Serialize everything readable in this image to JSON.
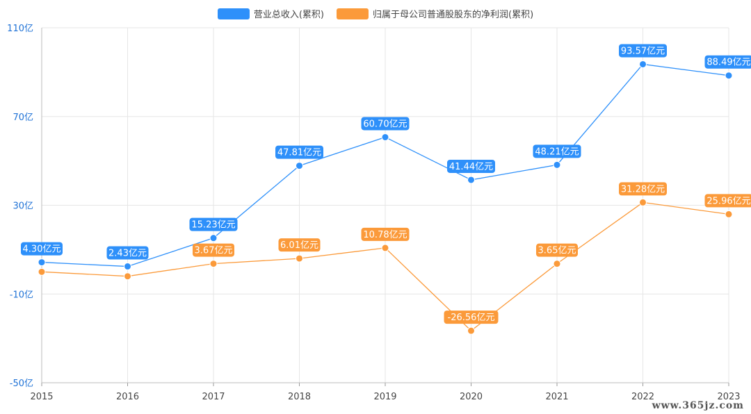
{
  "colors": {
    "revenue": "#2e90fa",
    "profit": "#fb9a3a",
    "grid": "#e6e6e6",
    "axis": "#1f72d6",
    "xaxis_text": "#444444"
  },
  "watermark": "www.365jz.com",
  "chart_data": {
    "type": "line",
    "categories": [
      "2015",
      "2016",
      "2017",
      "2018",
      "2019",
      "2020",
      "2021",
      "2022",
      "2023"
    ],
    "ylim": [
      -50,
      110
    ],
    "yticks": [
      -50,
      -10,
      30,
      70,
      110
    ],
    "ytick_labels": [
      "-50亿",
      "-10亿",
      "30亿",
      "70亿",
      "110亿"
    ],
    "grid": true,
    "legend_position": "top-center",
    "series": [
      {
        "name": "营业总收入(累积)",
        "color_key": "revenue",
        "values": [
          4.3,
          2.43,
          15.23,
          47.81,
          60.7,
          41.44,
          48.21,
          93.57,
          88.49
        ],
        "labels": [
          "4.30亿元",
          "2.43亿元",
          "15.23亿元",
          "47.81亿元",
          "60.70亿元",
          "41.44亿元",
          "48.21亿元",
          "93.57亿元",
          "88.49亿元"
        ],
        "label_mask": [
          1,
          1,
          1,
          1,
          1,
          1,
          1,
          1,
          1
        ]
      },
      {
        "name": "归属于母公司普通股股东的净利润(累积)",
        "color_key": "profit",
        "values": [
          0.0,
          -2.0,
          3.67,
          6.01,
          10.78,
          -26.56,
          3.65,
          31.28,
          25.96
        ],
        "labels": [
          "",
          "",
          "3.67亿元",
          "6.01亿元",
          "10.78亿元",
          "-26.56亿元",
          "3.65亿元",
          "31.28亿元",
          "25.96亿元"
        ],
        "label_mask": [
          0,
          0,
          1,
          1,
          1,
          1,
          1,
          1,
          1
        ]
      }
    ]
  }
}
